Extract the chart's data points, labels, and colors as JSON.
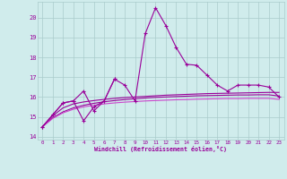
{
  "x": [
    0,
    1,
    2,
    3,
    4,
    5,
    6,
    7,
    8,
    9,
    10,
    11,
    12,
    13,
    14,
    15,
    16,
    17,
    18,
    19,
    20,
    21,
    22,
    23
  ],
  "line1_y": [
    14.5,
    15.1,
    15.7,
    15.8,
    16.3,
    15.3,
    15.8,
    16.9,
    16.6,
    15.8,
    19.2,
    20.5,
    19.6,
    18.5,
    17.65,
    17.6,
    17.1,
    16.6,
    16.3,
    16.6,
    16.6,
    16.6,
    16.5,
    16.0
  ],
  "line2_y": [
    14.5,
    15.1,
    15.7,
    15.8,
    14.8,
    15.5,
    15.8,
    16.9,
    null,
    null,
    null,
    null,
    null,
    null,
    null,
    null,
    null,
    null,
    null,
    null,
    null,
    null,
    null,
    null
  ],
  "line3_y": [
    14.5,
    15.05,
    15.45,
    15.65,
    15.75,
    15.82,
    15.88,
    15.93,
    15.97,
    16.0,
    16.03,
    16.06,
    16.09,
    16.11,
    16.13,
    16.15,
    16.17,
    16.18,
    16.19,
    16.2,
    16.21,
    16.22,
    16.23,
    16.23
  ],
  "line4_y": [
    14.5,
    14.95,
    15.25,
    15.45,
    15.58,
    15.68,
    15.76,
    15.82,
    15.87,
    15.91,
    15.95,
    15.98,
    16.0,
    16.02,
    16.04,
    16.06,
    16.07,
    16.08,
    16.09,
    16.1,
    16.1,
    16.11,
    16.11,
    16.05
  ],
  "line5_y": [
    14.5,
    14.92,
    15.2,
    15.38,
    15.5,
    15.58,
    15.65,
    15.7,
    15.74,
    15.77,
    15.8,
    15.82,
    15.84,
    15.86,
    15.87,
    15.89,
    15.9,
    15.91,
    15.92,
    15.92,
    15.93,
    15.93,
    15.93,
    15.88
  ],
  "color_main": "#990099",
  "color_light": "#cc44cc",
  "bg_color": "#d0ecec",
  "grid_color": "#aacccc",
  "yticks": [
    14,
    15,
    16,
    17,
    18,
    19,
    20
  ],
  "xlabel": "Windchill (Refroidissement éolien,°C)",
  "xlim": [
    -0.5,
    23.5
  ],
  "ylim": [
    13.85,
    20.8
  ],
  "xticks": [
    0,
    1,
    2,
    3,
    4,
    5,
    6,
    7,
    8,
    9,
    10,
    11,
    12,
    13,
    14,
    15,
    16,
    17,
    18,
    19,
    20,
    21,
    22,
    23
  ],
  "figwidth": 3.2,
  "figheight": 2.0,
  "dpi": 100
}
